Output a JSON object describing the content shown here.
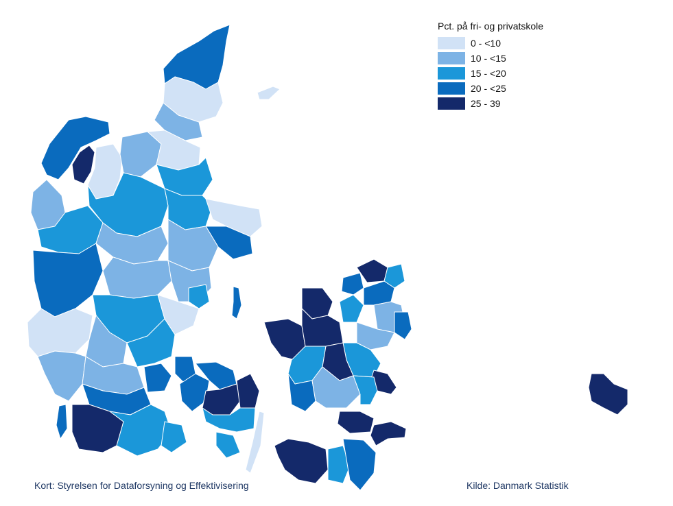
{
  "legend": {
    "title": "Pct. på fri- og privatskole",
    "classes": [
      {
        "label": "0 - <10",
        "color": "#D1E2F6"
      },
      {
        "label": "10 - <15",
        "color": "#7DB3E5"
      },
      {
        "label": "15 - <20",
        "color": "#1B97D9"
      },
      {
        "label": "20 - <25",
        "color": "#0A6BBE"
      },
      {
        "label": "25 - 39",
        "color": "#14296A"
      }
    ]
  },
  "credits": {
    "map_source": "Kort: Styrelsen for Dataforsyning og Effektivisering",
    "data_source": "Kilde: Danmark Statistik"
  }
}
